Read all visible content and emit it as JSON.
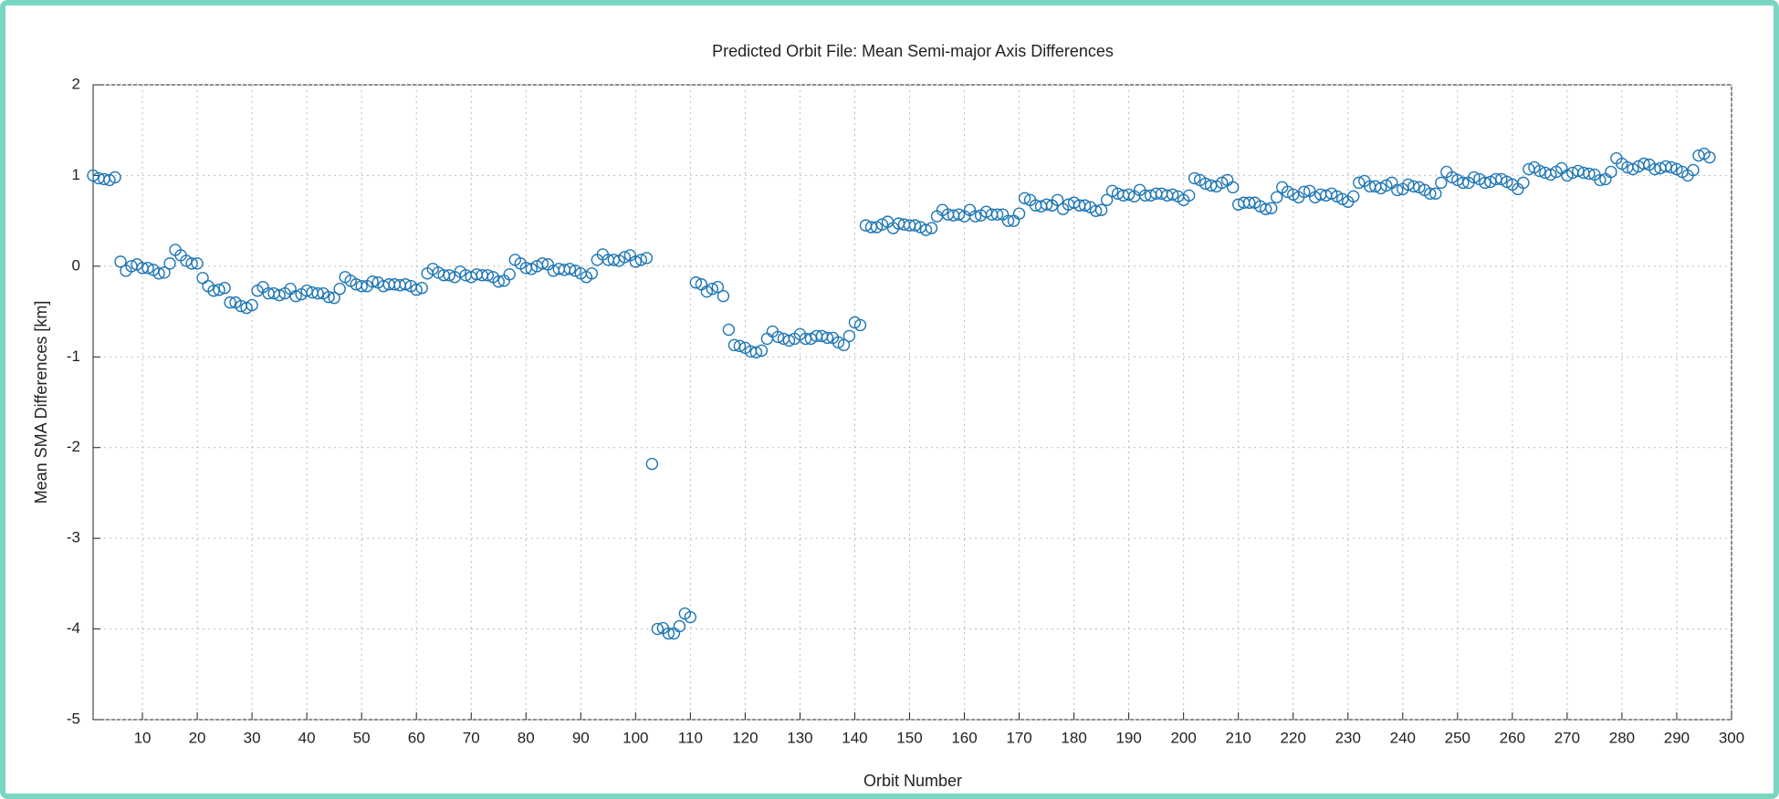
{
  "chart_data": {
    "type": "scatter",
    "title": "Predicted Orbit File: Mean Semi-major Axis Differences",
    "x_label": "Orbit Number",
    "y_label": "Mean SMA Differences [km]",
    "xlim": [
      1,
      300
    ],
    "ylim": [
      -5,
      2
    ],
    "xticks": [
      10,
      20,
      30,
      40,
      50,
      60,
      70,
      80,
      90,
      100,
      110,
      120,
      130,
      140,
      150,
      160,
      170,
      180,
      190,
      200,
      210,
      220,
      230,
      240,
      250,
      260,
      270,
      280,
      290,
      300
    ],
    "yticks": [
      -5,
      -4,
      -3,
      -2,
      -1,
      0,
      1,
      2
    ],
    "grid": true,
    "series": [
      {
        "color": "#1f77b4",
        "x": [
          1,
          2,
          3,
          4,
          5,
          6,
          7,
          8,
          9,
          10,
          11,
          12,
          13,
          14,
          15,
          16,
          17,
          18,
          19,
          20,
          21,
          22,
          23,
          24,
          25,
          26,
          27,
          28,
          29,
          30,
          31,
          32,
          33,
          34,
          35,
          36,
          37,
          38,
          39,
          40,
          41,
          42,
          43,
          44,
          45,
          46,
          47,
          48,
          49,
          50,
          51,
          52,
          53,
          54,
          55,
          56,
          57,
          58,
          59,
          60,
          61,
          62,
          63,
          64,
          65,
          66,
          67,
          68,
          69,
          70,
          71,
          72,
          73,
          74,
          75,
          76,
          77,
          78,
          79,
          80,
          81,
          82,
          83,
          84,
          85,
          86,
          87,
          88,
          89,
          90,
          91,
          92,
          93,
          94,
          95,
          96,
          97,
          98,
          99,
          100,
          101,
          102,
          103,
          104,
          105,
          106,
          107,
          108,
          109,
          110,
          111,
          112,
          113,
          114,
          115,
          116,
          117,
          118,
          119,
          120,
          121,
          122,
          123,
          124,
          125,
          126,
          127,
          128,
          129,
          130,
          131,
          132,
          133,
          134,
          135,
          136,
          137,
          138,
          139,
          140,
          141,
          142,
          143,
          144,
          145,
          146,
          147,
          148,
          149,
          150,
          151,
          152,
          153,
          154,
          155,
          156,
          157,
          158,
          159,
          160,
          161,
          162,
          163,
          164,
          165,
          166,
          167,
          168,
          169,
          170,
          171,
          172,
          173,
          174,
          175,
          176,
          177,
          178,
          179,
          180,
          181,
          182,
          183,
          184,
          185,
          186,
          187,
          188,
          189,
          190,
          191,
          192,
          193,
          194,
          195,
          196,
          197,
          198,
          199,
          200,
          201,
          202,
          203,
          204,
          205,
          206,
          207,
          208,
          209,
          210,
          211,
          212,
          213,
          214,
          215,
          216,
          217,
          218,
          219,
          220,
          221,
          222,
          223,
          224,
          225,
          226,
          227,
          228,
          229,
          230,
          231,
          232,
          233,
          234,
          235,
          236,
          237,
          238,
          239,
          240,
          241,
          242,
          243,
          244,
          245,
          246,
          247,
          248,
          249,
          250,
          251,
          252,
          253,
          254,
          255,
          256,
          257,
          258,
          259,
          260,
          261,
          262,
          263,
          264,
          265,
          266,
          267,
          268,
          269,
          270,
          271,
          272,
          273,
          274,
          275,
          276,
          277,
          278,
          279,
          280,
          281,
          282,
          283,
          284,
          285,
          286,
          287,
          288,
          289,
          290,
          291,
          292,
          293,
          294,
          295,
          296
        ],
        "values": [
          1.0,
          0.97,
          0.96,
          0.95,
          0.98,
          0.05,
          -0.05,
          0.0,
          0.02,
          -0.02,
          -0.02,
          -0.04,
          -0.08,
          -0.07,
          0.03,
          0.18,
          0.12,
          0.06,
          0.03,
          0.03,
          -0.13,
          -0.22,
          -0.27,
          -0.26,
          -0.24,
          -0.4,
          -0.4,
          -0.44,
          -0.46,
          -0.43,
          -0.27,
          -0.23,
          -0.3,
          -0.3,
          -0.32,
          -0.3,
          -0.25,
          -0.33,
          -0.31,
          -0.27,
          -0.29,
          -0.3,
          -0.3,
          -0.34,
          -0.35,
          -0.25,
          -0.12,
          -0.16,
          -0.2,
          -0.22,
          -0.22,
          -0.17,
          -0.18,
          -0.22,
          -0.2,
          -0.2,
          -0.21,
          -0.2,
          -0.22,
          -0.26,
          -0.24,
          -0.08,
          -0.03,
          -0.07,
          -0.1,
          -0.1,
          -0.12,
          -0.06,
          -0.1,
          -0.12,
          -0.09,
          -0.1,
          -0.1,
          -0.12,
          -0.17,
          -0.16,
          -0.09,
          0.07,
          0.03,
          -0.02,
          -0.03,
          0.0,
          0.03,
          0.02,
          -0.05,
          -0.03,
          -0.04,
          -0.03,
          -0.05,
          -0.08,
          -0.12,
          -0.08,
          0.07,
          0.13,
          0.07,
          0.07,
          0.06,
          0.1,
          0.12,
          0.05,
          0.07,
          0.09,
          -2.18,
          -4.0,
          -3.99,
          -4.05,
          -4.05,
          -3.97,
          -3.83,
          -3.87,
          -0.18,
          -0.2,
          -0.28,
          -0.25,
          -0.23,
          -0.33,
          -0.7,
          -0.87,
          -0.88,
          -0.9,
          -0.94,
          -0.95,
          -0.93,
          -0.8,
          -0.72,
          -0.78,
          -0.8,
          -0.82,
          -0.8,
          -0.75,
          -0.8,
          -0.8,
          -0.77,
          -0.77,
          -0.79,
          -0.79,
          -0.84,
          -0.87,
          -0.77,
          -0.62,
          -0.65,
          0.45,
          0.43,
          0.43,
          0.46,
          0.49,
          0.42,
          0.47,
          0.46,
          0.45,
          0.45,
          0.43,
          0.4,
          0.42,
          0.55,
          0.62,
          0.57,
          0.56,
          0.57,
          0.55,
          0.62,
          0.55,
          0.56,
          0.6,
          0.57,
          0.57,
          0.57,
          0.5,
          0.5,
          0.58,
          0.75,
          0.73,
          0.67,
          0.66,
          0.68,
          0.67,
          0.73,
          0.63,
          0.68,
          0.7,
          0.67,
          0.67,
          0.65,
          0.61,
          0.62,
          0.73,
          0.83,
          0.8,
          0.78,
          0.79,
          0.77,
          0.84,
          0.78,
          0.78,
          0.8,
          0.8,
          0.78,
          0.79,
          0.77,
          0.73,
          0.78,
          0.97,
          0.95,
          0.91,
          0.89,
          0.88,
          0.92,
          0.95,
          0.87,
          0.68,
          0.7,
          0.7,
          0.7,
          0.66,
          0.63,
          0.64,
          0.76,
          0.87,
          0.82,
          0.79,
          0.76,
          0.82,
          0.83,
          0.76,
          0.79,
          0.78,
          0.8,
          0.77,
          0.74,
          0.71,
          0.77,
          0.92,
          0.94,
          0.88,
          0.88,
          0.86,
          0.89,
          0.92,
          0.84,
          0.85,
          0.9,
          0.88,
          0.87,
          0.84,
          0.8,
          0.8,
          0.92,
          1.04,
          0.98,
          0.95,
          0.92,
          0.92,
          0.98,
          0.96,
          0.92,
          0.93,
          0.96,
          0.96,
          0.93,
          0.9,
          0.85,
          0.92,
          1.07,
          1.09,
          1.05,
          1.03,
          1.01,
          1.04,
          1.08,
          1.0,
          1.03,
          1.05,
          1.03,
          1.02,
          1.01,
          0.95,
          0.96,
          1.04,
          1.19,
          1.13,
          1.09,
          1.07,
          1.1,
          1.13,
          1.12,
          1.07,
          1.08,
          1.1,
          1.09,
          1.07,
          1.04,
          1.0,
          1.06,
          1.22,
          1.24,
          1.2
        ]
      }
    ]
  }
}
